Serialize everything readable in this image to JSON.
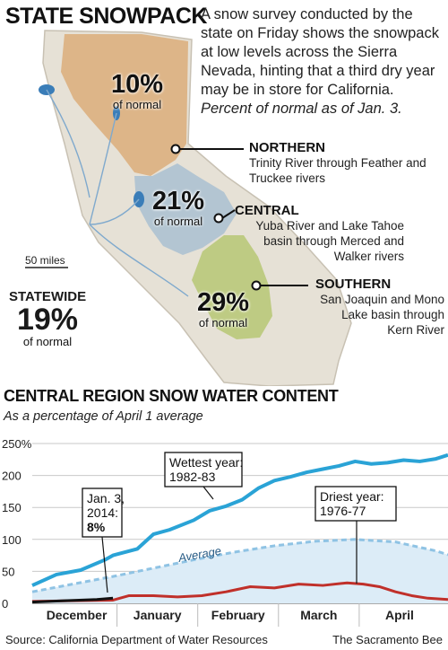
{
  "header": {
    "title": "STATE SNOWPACK",
    "intro": "A snow survey conducted by the state on Friday shows the snowpack at low levels across the Sierra Nevada, hinting that a third dry year may be in store for California.",
    "intro_italic": "Percent of normal as of Jan. 3."
  },
  "map": {
    "regions": [
      {
        "id": "northern",
        "name": "NORTHERN",
        "percent": "10%",
        "of_normal": "of normal",
        "description": "Trinity River through Feather and Truckee rivers",
        "color": "#d9a36a"
      },
      {
        "id": "central",
        "name": "CENTRAL",
        "percent": "21%",
        "of_normal": "of normal",
        "description": "Yuba River and Lake Tahoe basin through Merced and Walker rivers",
        "color": "#a9bfd1"
      },
      {
        "id": "southern",
        "name": "SOUTHERN",
        "percent": "29%",
        "of_normal": "of normal",
        "description": "San Joaquin and Mono Lake basin through Kern River",
        "color": "#b9c97a"
      }
    ],
    "statewide": {
      "label": "STATEWIDE",
      "percent": "19%",
      "of_normal": "of normal"
    },
    "scale_label": "50 miles",
    "land_color": "#e6e1d6",
    "water_color": "#3a7db8"
  },
  "chart": {
    "title": "CENTRAL REGION SNOW WATER CONTENT",
    "subtitle": "As a percentage of April 1 average",
    "annotations": {
      "wettest": [
        "Wettest year:",
        "1982-83"
      ],
      "driest": [
        "Driest year:",
        "1976-77"
      ],
      "current": [
        "Jan. 3,",
        "2014:",
        "8%"
      ],
      "average": "Average"
    },
    "colors": {
      "wettest": "#2aa3d6",
      "driest": "#c0302a",
      "average": "#8fc3e4",
      "current": "#111111"
    }
  },
  "chart_data": {
    "type": "line",
    "ylim": [
      0,
      250
    ],
    "yticks": [
      "0",
      "50",
      "100",
      "150",
      "200",
      "250%"
    ],
    "ytick_values": [
      0,
      50,
      100,
      150,
      200,
      250
    ],
    "xlim": [
      0,
      5.15
    ],
    "month_labels": [
      "December",
      "January",
      "February",
      "March",
      "April"
    ],
    "grid": true,
    "series": [
      {
        "name": "Wettest year: 1982-83",
        "x": [
          0,
          0.3,
          0.6,
          0.9,
          1.0,
          1.3,
          1.5,
          1.7,
          2.0,
          2.2,
          2.4,
          2.6,
          2.8,
          3.0,
          3.2,
          3.4,
          3.6,
          3.8,
          4.0,
          4.2,
          4.4,
          4.6,
          4.8,
          5.0,
          5.15
        ],
        "y": [
          28,
          45,
          52,
          68,
          75,
          85,
          108,
          115,
          130,
          145,
          152,
          162,
          180,
          192,
          198,
          205,
          210,
          215,
          222,
          218,
          220,
          224,
          222,
          226,
          232
        ]
      },
      {
        "name": "Average",
        "x": [
          0,
          0.5,
          1.0,
          1.5,
          2.0,
          2.5,
          3.0,
          3.5,
          4.0,
          4.5,
          5.0,
          5.15
        ],
        "y": [
          18,
          30,
          42,
          55,
          68,
          80,
          90,
          97,
          100,
          96,
          82,
          76
        ]
      },
      {
        "name": "Driest year: 1976-77",
        "x": [
          0,
          0.5,
          1.0,
          1.2,
          1.5,
          1.8,
          2.1,
          2.4,
          2.7,
          3.0,
          3.3,
          3.6,
          3.9,
          4.1,
          4.3,
          4.5,
          4.7,
          4.9,
          5.15
        ],
        "y": [
          3,
          4,
          5,
          12,
          12,
          10,
          12,
          18,
          26,
          24,
          30,
          28,
          32,
          30,
          26,
          18,
          12,
          8,
          6
        ]
      },
      {
        "name": "Jan. 3, 2014: 8%",
        "x": [
          0,
          0.4,
          0.8,
          1.0
        ],
        "y": [
          2,
          4,
          6,
          8
        ]
      }
    ]
  },
  "footer": {
    "source": "Source: California Department of Water Resources",
    "credit": "The Sacramento Bee"
  }
}
